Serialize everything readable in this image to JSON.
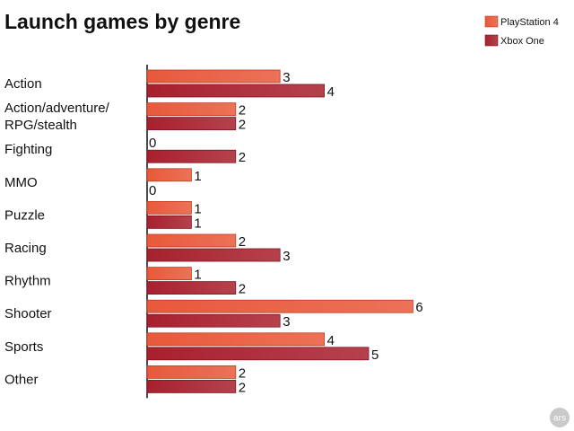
{
  "chart_data": {
    "type": "bar",
    "orientation": "horizontal",
    "title": "Launch games by genre",
    "categories": [
      [
        "Action"
      ],
      [
        "Action/adventure/",
        "RPG/stealth"
      ],
      [
        "Fighting"
      ],
      [
        "MMO"
      ],
      [
        "Puzzle"
      ],
      [
        "Racing"
      ],
      [
        "Rhythm"
      ],
      [
        "Shooter"
      ],
      [
        "Sports"
      ],
      [
        "Other"
      ]
    ],
    "series": [
      {
        "name": "PlayStation 4",
        "color": "#e8593a",
        "values": [
          3,
          2,
          0,
          1,
          1,
          2,
          1,
          6,
          4,
          2
        ]
      },
      {
        "name": "Xbox One",
        "color": "#a8202e",
        "values": [
          4,
          2,
          2,
          0,
          1,
          3,
          2,
          3,
          5,
          2
        ]
      }
    ],
    "xlim": [
      0,
      6
    ],
    "grid": false,
    "legend": "top-right",
    "data_labels": true
  },
  "logo": {
    "text": "ars",
    "icon": "ars-technica-logo-icon"
  }
}
